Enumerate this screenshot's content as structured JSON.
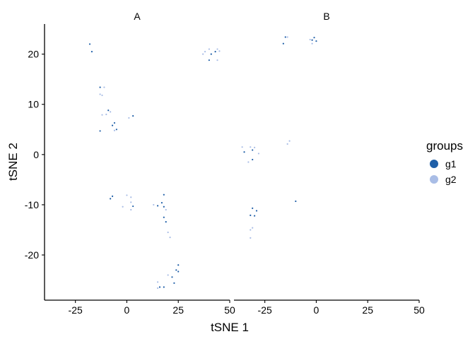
{
  "chart_data": {
    "type": "scatter",
    "xlabel": "tSNE 1",
    "ylabel": "tSNE 2",
    "xlim": [
      -40,
      50
    ],
    "ylim": [
      -29,
      26
    ],
    "xticks": [
      -25,
      0,
      25,
      50
    ],
    "yticks": [
      -20,
      -10,
      0,
      10,
      20
    ],
    "grid": false,
    "legend": {
      "title": "groups",
      "position": "right",
      "entries": [
        {
          "label": "g1",
          "color": "#1f5fa8"
        },
        {
          "label": "g2",
          "color": "#a9bde6"
        }
      ]
    },
    "panels": [
      {
        "label": "A",
        "series": [
          {
            "name": "g1",
            "color": "#1f5fa8",
            "points": [
              [
                -18,
                22
              ],
              [
                -17,
                20.5
              ],
              [
                -13,
                13.4
              ],
              [
                -9,
                8.8
              ],
              [
                -6,
                6.3
              ],
              [
                -7,
                5.8
              ],
              [
                -5,
                5
              ],
              [
                -13,
                4.7
              ],
              [
                3,
                7.7
              ],
              [
                40,
                18.8
              ],
              [
                41,
                20
              ],
              [
                43,
                20.5
              ],
              [
                -7,
                -8.3
              ],
              [
                -8,
                -8.8
              ],
              [
                15,
                -10.2
              ],
              [
                17,
                -9.6
              ],
              [
                18,
                -8
              ],
              [
                18,
                -10.4
              ],
              [
                18,
                -12.5
              ],
              [
                19,
                -13.4
              ],
              [
                25,
                -22
              ],
              [
                24,
                -23
              ],
              [
                25,
                -23.3
              ],
              [
                22,
                -24.4
              ],
              [
                23,
                -25.6
              ],
              [
                16,
                -26.4
              ],
              [
                18,
                -26.4
              ],
              [
                3,
                -10.3
              ]
            ]
          },
          {
            "name": "g2",
            "color": "#a9bde6",
            "points": [
              [
                -13,
                12
              ],
              [
                -11,
                13.4
              ],
              [
                -12,
                11.8
              ],
              [
                -8,
                8.5
              ],
              [
                -12,
                7.9
              ],
              [
                -10,
                8
              ],
              [
                1,
                7.3
              ],
              [
                -6,
                4.8
              ],
              [
                37,
                20
              ],
              [
                40,
                21
              ],
              [
                44,
                21
              ],
              [
                45,
                20.6
              ],
              [
                44,
                18.8
              ],
              [
                38,
                20.5
              ],
              [
                -2,
                -10.4
              ],
              [
                0,
                -8.1
              ],
              [
                2,
                -8.5
              ],
              [
                2,
                -11
              ],
              [
                13,
                -10
              ],
              [
                19,
                -11
              ],
              [
                20,
                -15.5
              ],
              [
                21,
                -16.5
              ],
              [
                20,
                -24
              ],
              [
                15,
                -25.4
              ],
              [
                15,
                -26.6
              ],
              [
                2,
                -9.5
              ]
            ]
          }
        ]
      },
      {
        "label": "B",
        "series": [
          {
            "name": "g1",
            "color": "#1f5fa8",
            "points": [
              [
                -16,
                22.1
              ],
              [
                -15,
                23.4
              ],
              [
                -2,
                22.8
              ],
              [
                -1,
                23.3
              ],
              [
                0,
                22.6
              ],
              [
                -35,
                0.5
              ],
              [
                -31,
                0.9
              ],
              [
                -31,
                -1
              ],
              [
                -29,
                -11.2
              ],
              [
                -31,
                -10.7
              ],
              [
                -32,
                -12.1
              ],
              [
                -10,
                -9.3
              ],
              [
                -30,
                -12.2
              ]
            ]
          },
          {
            "name": "g2",
            "color": "#a9bde6",
            "points": [
              [
                -14,
                23.4
              ],
              [
                -3,
                22.9
              ],
              [
                -2,
                22.1
              ],
              [
                -36,
                1.5
              ],
              [
                -32,
                1.5
              ],
              [
                -28,
                0.2
              ],
              [
                -33,
                -1.5
              ],
              [
                -13,
                2.7
              ],
              [
                -14,
                2.1
              ],
              [
                -31,
                -14.6
              ],
              [
                -32,
                -15
              ],
              [
                -32,
                -16.6
              ],
              [
                -30,
                1.4
              ]
            ]
          }
        ]
      }
    ]
  }
}
